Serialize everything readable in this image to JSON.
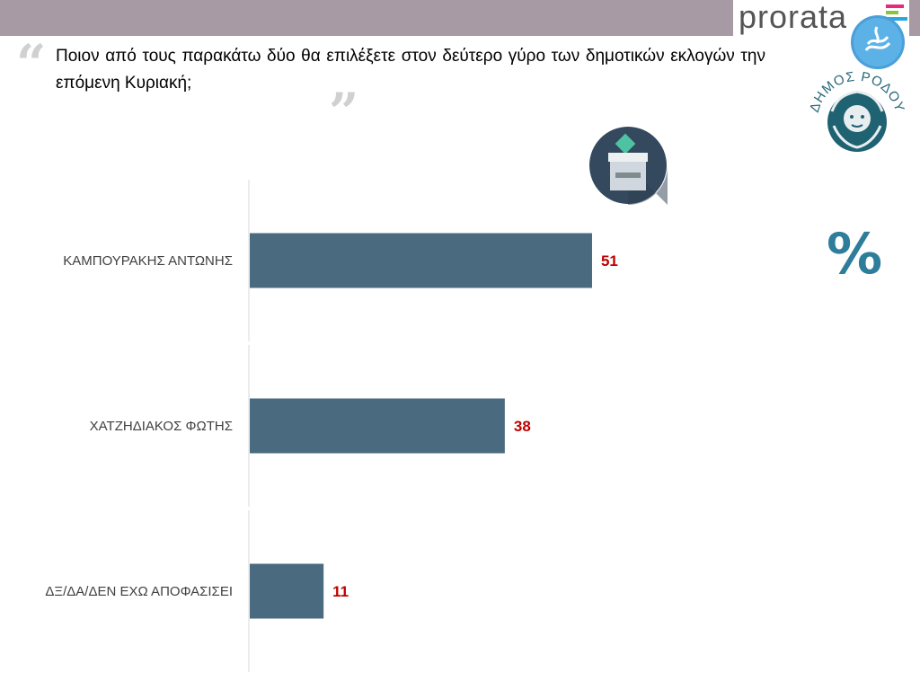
{
  "header": {
    "brand": "prorata",
    "brand_colors": [
      "#e8287a",
      "#8ac43f",
      "#29a8e0"
    ],
    "bar_color": "#a89aa5"
  },
  "question": {
    "text": "Ποιον από τους παρακάτω δύο θα επιλέξετε στον δεύτερο γύρο των δημοτικών εκλογών την επόμενη Κυριακή;"
  },
  "seal": {
    "text": "ΔΗΜΟΣ ΡΟΔΟΥ"
  },
  "icons": [
    "waves-logo-icon",
    "ballot-box-icon",
    "percent-icon"
  ],
  "percent_symbol": "%",
  "chart_data": {
    "type": "bar",
    "orientation": "horizontal",
    "categories": [
      "ΚΑΜΠΟΥΡΑΚΗΣ ΑΝΤΩΝΗΣ",
      "ΧΑΤΖΗΔΙΑΚΟΣ ΦΩΤΗΣ",
      "ΔΞ/ΔΑ/ΔΕΝ ΕΧΩ ΑΠΟΦΑΣΙΣΕΙ"
    ],
    "values": [
      51,
      38,
      11
    ],
    "bar_color": "#4a6a80",
    "value_label_color": "#c00000",
    "grid": false
  }
}
